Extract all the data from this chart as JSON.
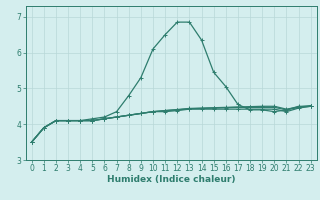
{
  "x": [
    0,
    1,
    2,
    3,
    4,
    5,
    6,
    7,
    8,
    9,
    10,
    11,
    12,
    13,
    14,
    15,
    16,
    17,
    18,
    19,
    20,
    21,
    22,
    23
  ],
  "lines": [
    [
      3.5,
      3.9,
      4.1,
      4.1,
      4.1,
      4.15,
      4.2,
      4.35,
      4.8,
      5.3,
      6.1,
      6.5,
      6.85,
      6.85,
      6.35,
      5.45,
      5.05,
      4.55,
      4.4,
      4.4,
      4.35,
      4.4,
      4.5,
      4.5
    ],
    [
      3.5,
      3.9,
      4.1,
      4.1,
      4.1,
      4.1,
      4.15,
      4.2,
      4.25,
      4.3,
      4.35,
      4.35,
      4.38,
      4.42,
      4.42,
      4.42,
      4.42,
      4.42,
      4.42,
      4.42,
      4.42,
      4.35,
      4.45,
      4.5
    ],
    [
      3.5,
      3.9,
      4.1,
      4.1,
      4.1,
      4.1,
      4.15,
      4.2,
      4.25,
      4.3,
      4.35,
      4.38,
      4.4,
      4.43,
      4.44,
      4.45,
      4.46,
      4.47,
      4.47,
      4.47,
      4.47,
      4.4,
      4.47,
      4.5
    ],
    [
      3.5,
      3.9,
      4.1,
      4.1,
      4.1,
      4.1,
      4.15,
      4.2,
      4.25,
      4.3,
      4.35,
      4.38,
      4.41,
      4.44,
      4.45,
      4.46,
      4.47,
      4.48,
      4.49,
      4.5,
      4.5,
      4.42,
      4.48,
      4.52
    ]
  ],
  "line_color": "#2e7d6e",
  "bg_color": "#d4eeee",
  "grid_color": "#b8d8d8",
  "xlabel": "Humidex (Indice chaleur)",
  "xlim": [
    -0.5,
    23.5
  ],
  "ylim": [
    3.0,
    7.3
  ],
  "yticks": [
    3,
    4,
    5,
    6,
    7
  ],
  "xticks": [
    0,
    1,
    2,
    3,
    4,
    5,
    6,
    7,
    8,
    9,
    10,
    11,
    12,
    13,
    14,
    15,
    16,
    17,
    18,
    19,
    20,
    21,
    22,
    23
  ],
  "marker": "+",
  "markersize": 3,
  "linewidth": 0.9,
  "tick_fontsize": 5.5,
  "xlabel_fontsize": 6.5
}
